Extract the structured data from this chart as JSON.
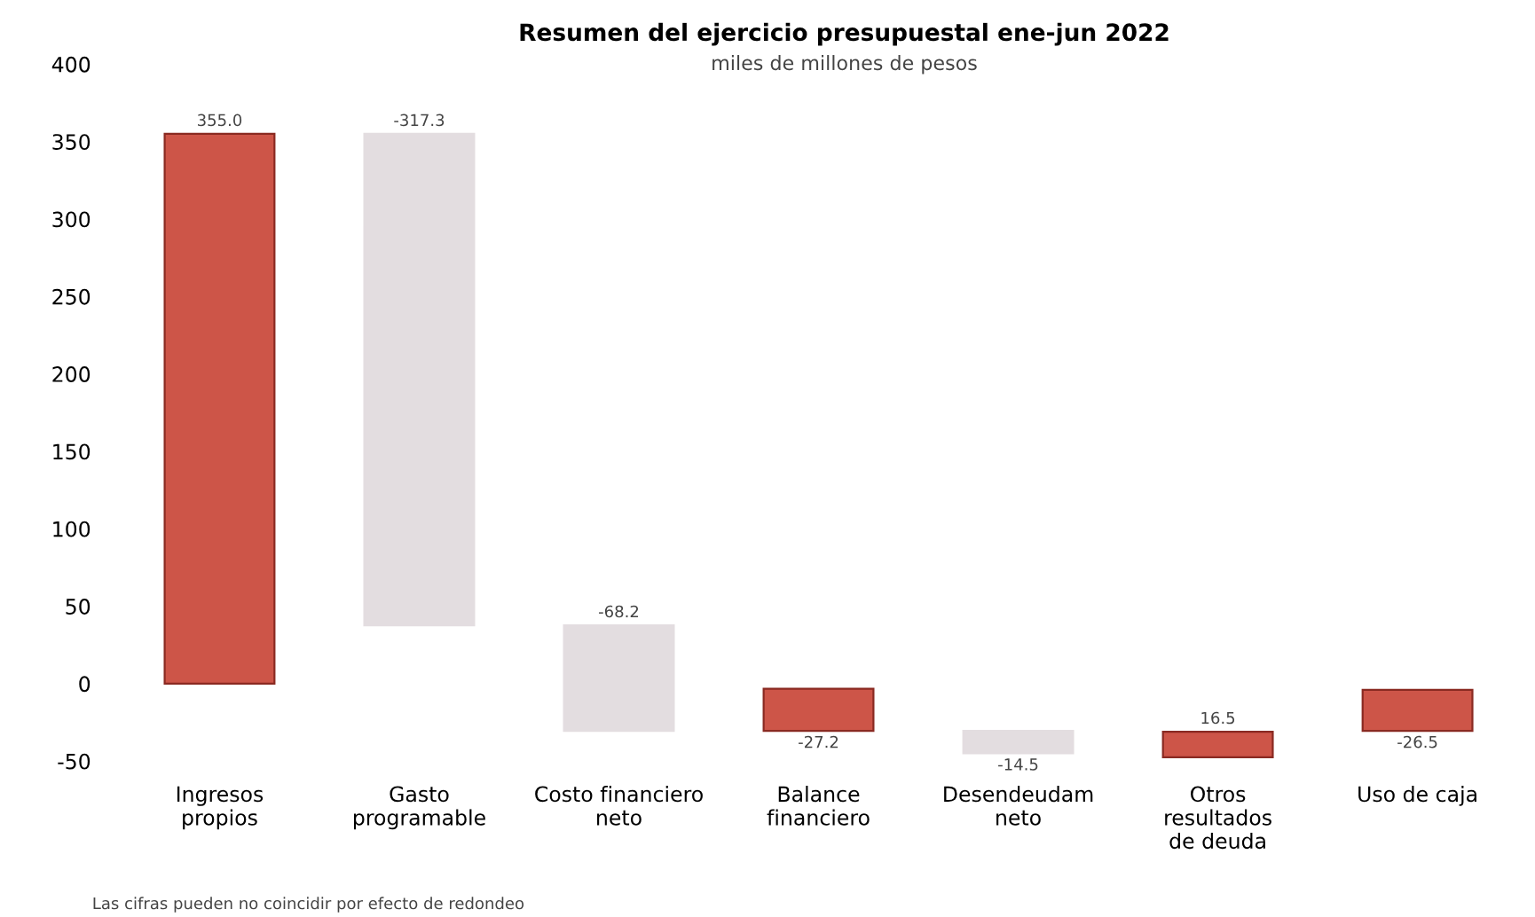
{
  "chart_data": {
    "type": "bar",
    "title": "Resumen del ejercicio presupuestal ene-jun 2022",
    "subtitle": "miles de millones de pesos",
    "categories": [
      "Ingresos\npropios",
      "Gasto\nprogramable",
      "Costo financiero\nneto",
      "Balance\nfinanciero",
      "Desendeudam\nneto",
      "Otros\nresultados\nde deuda",
      "Uso de caja"
    ],
    "values": [
      355.0,
      -317.3,
      -68.2,
      -27.2,
      -14.5,
      16.5,
      -26.5
    ],
    "base": [
      0,
      355.0,
      37.7,
      -3.3,
      -30.5,
      -47.5,
      -4.0
    ],
    "value_labels": [
      "355.0",
      "-317.3",
      "-68.2",
      "-27.2",
      "-14.5",
      "16.5",
      "-26.5"
    ],
    "colors": [
      "#cd5548",
      "#e3dde0",
      "#e3dde0",
      "#cd5548",
      "#e3dde0",
      "#cd5548",
      "#cd5548"
    ],
    "ylim": [
      -50,
      400
    ],
    "yticks": [
      -50,
      0,
      50,
      100,
      150,
      200,
      250,
      300,
      350,
      400
    ],
    "grid": false,
    "legend": false,
    "annotations": [
      "Las cifras pueden no coincidir por efecto de redondeo"
    ]
  }
}
